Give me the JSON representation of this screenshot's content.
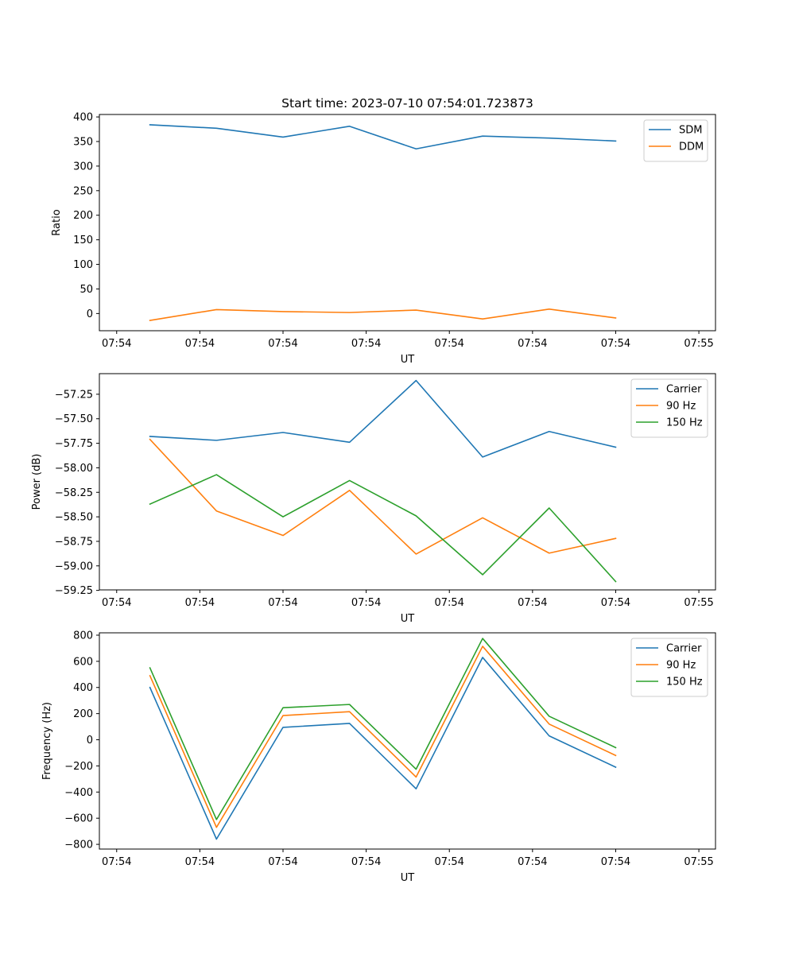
{
  "chart_data": [
    {
      "type": "line",
      "title": "Start time: 2023-07-10 07:54:01.723873",
      "xlabel": "UT",
      "ylabel": "Ratio",
      "x_ticks": [
        "07:54",
        "07:54",
        "07:54",
        "07:54",
        "07:54",
        "07:54",
        "07:54"
      ],
      "x_ticks_end": "07:55",
      "x_index_range": [
        -0.76,
        8.5
      ],
      "x": [
        0,
        1,
        2,
        3,
        4,
        5,
        6,
        7
      ],
      "ylim": [
        -35,
        405
      ],
      "y_ticks": [
        0,
        50,
        100,
        150,
        200,
        250,
        300,
        350,
        400
      ],
      "legend_loc": "upper right",
      "series": [
        {
          "name": "SDM",
          "color": "#1f77b4",
          "values": [
            384,
            377,
            359,
            381,
            335,
            361,
            357,
            351
          ]
        },
        {
          "name": "DDM",
          "color": "#ff7f0e",
          "values": [
            -14,
            8,
            4,
            2,
            7,
            -11,
            9,
            -9
          ]
        }
      ]
    },
    {
      "type": "line",
      "title": "",
      "xlabel": "UT",
      "ylabel": "Power (dB)",
      "x_ticks": [
        "07:54",
        "07:54",
        "07:54",
        "07:54",
        "07:54",
        "07:54",
        "07:54"
      ],
      "x_ticks_end": "07:55",
      "x_index_range": [
        -0.76,
        8.5
      ],
      "x": [
        0,
        1,
        2,
        3,
        4,
        5,
        6,
        7
      ],
      "ylim": [
        -59.245,
        -57.04
      ],
      "y_ticks": [
        -59.25,
        -59.0,
        -58.75,
        -58.5,
        -58.25,
        -58.0,
        -57.75,
        -57.5,
        -57.25
      ],
      "y_tick_labels": [
        "−59.25",
        "−59.00",
        "−58.75",
        "−58.50",
        "−58.25",
        "−58.00",
        "−57.75",
        "−57.50",
        "−57.25"
      ],
      "legend_loc": "upper right",
      "series": [
        {
          "name": "Carrier",
          "color": "#1f77b4",
          "values": [
            -57.68,
            -57.72,
            -57.64,
            -57.74,
            -57.11,
            -57.89,
            -57.63,
            -57.79
          ]
        },
        {
          "name": "90 Hz",
          "color": "#ff7f0e",
          "values": [
            -57.71,
            -58.44,
            -58.69,
            -58.23,
            -58.88,
            -58.51,
            -58.87,
            -58.72
          ]
        },
        {
          "name": "150 Hz",
          "color": "#2ca02c",
          "values": [
            -58.37,
            -58.07,
            -58.5,
            -58.13,
            -58.49,
            -59.09,
            -58.41,
            -59.16
          ]
        }
      ]
    },
    {
      "type": "line",
      "title": "",
      "xlabel": "UT",
      "ylabel": "Frequency (Hz)",
      "x_ticks": [
        "07:54",
        "07:54",
        "07:54",
        "07:54",
        "07:54",
        "07:54",
        "07:54"
      ],
      "x_ticks_end": "07:55",
      "x_index_range": [
        -0.76,
        8.5
      ],
      "x": [
        0,
        1,
        2,
        3,
        4,
        5,
        6,
        7
      ],
      "ylim": [
        -836,
        818
      ],
      "y_ticks": [
        -800,
        -600,
        -400,
        -200,
        0,
        200,
        400,
        600,
        800
      ],
      "y_tick_labels": [
        "−800",
        "−600",
        "−400",
        "−200",
        "0",
        "200",
        "400",
        "600",
        "800"
      ],
      "legend_loc": "upper right",
      "series": [
        {
          "name": "Carrier",
          "color": "#1f77b4",
          "values": [
            400,
            -760,
            95,
            125,
            -375,
            630,
            30,
            -210
          ]
        },
        {
          "name": "90 Hz",
          "color": "#ff7f0e",
          "values": [
            490,
            -670,
            185,
            215,
            -285,
            715,
            120,
            -120
          ]
        },
        {
          "name": "150 Hz",
          "color": "#2ca02c",
          "values": [
            550,
            -610,
            245,
            270,
            -225,
            775,
            180,
            -60
          ]
        }
      ]
    }
  ]
}
